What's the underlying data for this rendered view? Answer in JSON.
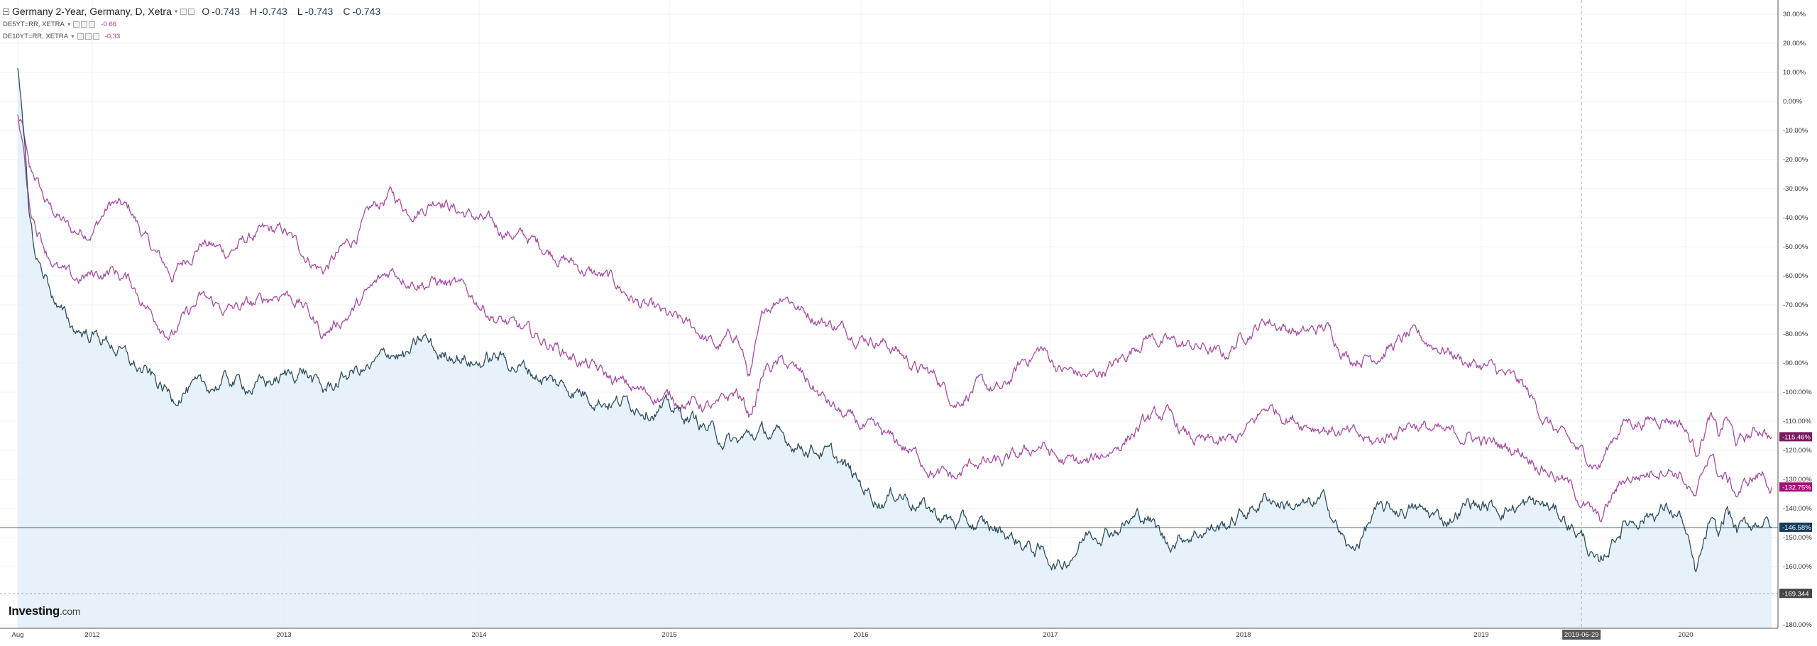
{
  "legend": {
    "main_title": "Germany 2-Year, Germany, D, Xetra",
    "ohlc": [
      {
        "label": "O",
        "value": "-0.743"
      },
      {
        "label": "H",
        "value": "-0.743"
      },
      {
        "label": "L",
        "value": "-0.743"
      },
      {
        "label": "C",
        "value": "-0.743"
      }
    ],
    "overlays": [
      {
        "label": "DE5YT=RR, XETRA",
        "value": "-0.66"
      },
      {
        "label": "DE10YT=RR, XETRA",
        "value": "-0.33"
      }
    ]
  },
  "logo": {
    "brand": "Investing",
    "suffix": ".com"
  },
  "colors": {
    "main_line": "#2f4f5f",
    "main_fill": "#e3eef9",
    "purple": "#a64ca0",
    "badge_purple": "#7a1b5e",
    "badge_magenta": "#a3107a",
    "badge_navy": "#143a5c",
    "badge_gray": "#444444"
  },
  "chart_data": {
    "type": "line",
    "title": "",
    "x_labels": [
      "Aug",
      "2012",
      "2013",
      "2014",
      "2015",
      "2016",
      "2017",
      "2018",
      "2019",
      "2020"
    ],
    "y_ticks": [
      "30.00%",
      "20.00%",
      "10.00%",
      "0.00%",
      "-10.00%",
      "-20.00%",
      "-30.00%",
      "-40.00%",
      "-50.00%",
      "-60.00%",
      "-70.00%",
      "-80.00%",
      "-90.00%",
      "-100.00%",
      "-110.00%",
      "-120.00%",
      "-130.00%",
      "-140.00%",
      "-150.00%",
      "-160.00%",
      "-170.00%",
      "-180.00%"
    ],
    "ylim": [
      -181,
      33
    ],
    "grid": true,
    "crosshair_date": "2019-06-29",
    "reference_value": -169.344,
    "reference_label": "-169.344",
    "series": [
      {
        "name": "DE10YT=RR, XETRA",
        "last_label": "-115.46%",
        "x": [
          2011.55,
          2011.58,
          2011.62,
          2011.66,
          2011.72,
          2011.8,
          2011.88,
          2012.0,
          2012.1,
          2012.2,
          2012.3,
          2012.42,
          2012.48,
          2012.57,
          2012.7,
          2012.85,
          2013.0,
          2013.1,
          2013.2,
          2013.35,
          2013.45,
          2013.55,
          2013.63,
          2013.72,
          2013.8,
          2013.88,
          2013.98,
          2014.1,
          2014.25,
          2014.4,
          2014.55,
          2014.7,
          2014.85,
          2015.0,
          2015.15,
          2015.25,
          2015.35,
          2015.42,
          2015.5,
          2015.6,
          2015.7,
          2015.8,
          2015.9,
          2016.0,
          2016.1,
          2016.2,
          2016.3,
          2016.4,
          2016.5,
          2016.6,
          2016.75,
          2016.85,
          2016.95,
          2017.05,
          2017.2,
          2017.35,
          2017.5,
          2017.6,
          2017.7,
          2017.8,
          2017.9,
          2018.0,
          2018.1,
          2018.25,
          2018.35,
          2018.45,
          2018.55,
          2018.7,
          2018.85,
          2018.95,
          2019.05,
          2019.2,
          2019.3,
          2019.4,
          2019.5,
          2019.58,
          2019.65,
          2019.7,
          2019.8,
          2019.9,
          2019.98,
          2020.05,
          2020.12,
          2020.16,
          2020.2,
          2020.25,
          2020.32,
          2020.38,
          2020.42
        ],
        "y": [
          -5,
          -10,
          -25,
          -27,
          -35,
          -40,
          -45,
          -44,
          -35,
          -38,
          -50,
          -60,
          -55,
          -48,
          -52,
          -46,
          -45,
          -52,
          -58,
          -48,
          -38,
          -32,
          -37,
          -36,
          -32,
          -37,
          -40,
          -44,
          -47,
          -52,
          -58,
          -62,
          -70,
          -75,
          -79,
          -85,
          -80,
          -95,
          -72,
          -65,
          -72,
          -75,
          -78,
          -80,
          -82,
          -86,
          -92,
          -95,
          -103,
          -98,
          -100,
          -90,
          -85,
          -92,
          -95,
          -90,
          -80,
          -83,
          -84,
          -85,
          -88,
          -80,
          -75,
          -80,
          -78,
          -88,
          -87,
          -81,
          -85,
          -90,
          -92,
          -98,
          -108,
          -116,
          -122,
          -125,
          -115,
          -110,
          -110,
          -108,
          -110,
          -120,
          -108,
          -116,
          -109,
          -118,
          -115,
          -112,
          -115.46
        ]
      },
      {
        "name": "DE5YT=RR, XETRA",
        "last_label": "-132.75%",
        "x": [
          2011.55,
          2011.58,
          2011.62,
          2011.66,
          2011.72,
          2011.8,
          2011.88,
          2012.0,
          2012.1,
          2012.2,
          2012.3,
          2012.42,
          2012.48,
          2012.57,
          2012.7,
          2012.85,
          2013.0,
          2013.1,
          2013.2,
          2013.35,
          2013.45,
          2013.55,
          2013.63,
          2013.72,
          2013.8,
          2013.88,
          2013.98,
          2014.1,
          2014.25,
          2014.4,
          2014.55,
          2014.7,
          2014.85,
          2015.0,
          2015.15,
          2015.25,
          2015.35,
          2015.42,
          2015.5,
          2015.6,
          2015.7,
          2015.8,
          2015.9,
          2016.0,
          2016.1,
          2016.2,
          2016.3,
          2016.4,
          2016.5,
          2016.6,
          2016.75,
          2016.85,
          2016.95,
          2017.05,
          2017.2,
          2017.35,
          2017.5,
          2017.6,
          2017.7,
          2017.8,
          2017.9,
          2018.0,
          2018.1,
          2018.25,
          2018.35,
          2018.45,
          2018.55,
          2018.7,
          2018.85,
          2018.95,
          2019.05,
          2019.2,
          2019.3,
          2019.4,
          2019.5,
          2019.58,
          2019.65,
          2019.7,
          2019.8,
          2019.9,
          2019.98,
          2020.05,
          2020.12,
          2020.16,
          2020.2,
          2020.25,
          2020.32,
          2020.38,
          2020.42
        ],
        "y": [
          -8,
          -15,
          -35,
          -42,
          -50,
          -58,
          -62,
          -60,
          -58,
          -62,
          -72,
          -80,
          -75,
          -68,
          -72,
          -70,
          -65,
          -70,
          -80,
          -72,
          -65,
          -58,
          -60,
          -62,
          -62,
          -64,
          -68,
          -75,
          -80,
          -84,
          -90,
          -96,
          -100,
          -102,
          -104,
          -106,
          -100,
          -108,
          -92,
          -90,
          -95,
          -102,
          -108,
          -112,
          -115,
          -118,
          -122,
          -128,
          -130,
          -124,
          -125,
          -122,
          -118,
          -124,
          -125,
          -118,
          -110,
          -108,
          -115,
          -118,
          -118,
          -115,
          -105,
          -110,
          -112,
          -115,
          -118,
          -110,
          -115,
          -115,
          -118,
          -120,
          -125,
          -130,
          -138,
          -145,
          -135,
          -130,
          -128,
          -125,
          -128,
          -138,
          -120,
          -128,
          -130,
          -135,
          -130,
          -128,
          -132.75
        ]
      },
      {
        "name": "Germany 2-Year, Germany, D, Xetra",
        "last_label": "-146.58%",
        "x": [
          2011.55,
          2011.58,
          2011.62,
          2011.66,
          2011.72,
          2011.8,
          2011.88,
          2012.0,
          2012.1,
          2012.2,
          2012.3,
          2012.42,
          2012.48,
          2012.57,
          2012.7,
          2012.85,
          2013.0,
          2013.1,
          2013.2,
          2013.35,
          2013.45,
          2013.55,
          2013.63,
          2013.72,
          2013.8,
          2013.88,
          2013.98,
          2014.1,
          2014.25,
          2014.4,
          2014.55,
          2014.7,
          2014.85,
          2015.0,
          2015.15,
          2015.25,
          2015.35,
          2015.42,
          2015.5,
          2015.6,
          2015.7,
          2015.8,
          2015.9,
          2016.0,
          2016.1,
          2016.2,
          2016.3,
          2016.4,
          2016.5,
          2016.6,
          2016.75,
          2016.85,
          2016.95,
          2017.05,
          2017.2,
          2017.35,
          2017.5,
          2017.6,
          2017.7,
          2017.8,
          2017.9,
          2018.0,
          2018.1,
          2018.25,
          2018.35,
          2018.45,
          2018.55,
          2018.7,
          2018.85,
          2018.95,
          2019.05,
          2019.2,
          2019.3,
          2019.4,
          2019.5,
          2019.58,
          2019.65,
          2019.7,
          2019.8,
          2019.9,
          2019.98,
          2020.05,
          2020.12,
          2020.16,
          2020.2,
          2020.25,
          2020.32,
          2020.38,
          2020.42
        ],
        "y": [
          10,
          -10,
          -40,
          -55,
          -60,
          -72,
          -78,
          -80,
          -83,
          -90,
          -95,
          -102,
          -98,
          -100,
          -96,
          -98,
          -95,
          -92,
          -100,
          -93,
          -92,
          -86,
          -88,
          -82,
          -88,
          -86,
          -90,
          -88,
          -92,
          -97,
          -100,
          -103,
          -104,
          -106,
          -110,
          -115,
          -118,
          -115,
          -114,
          -117,
          -118,
          -120,
          -125,
          -132,
          -137,
          -134,
          -138,
          -142,
          -145,
          -146,
          -148,
          -152,
          -155,
          -160,
          -148,
          -146,
          -142,
          -152,
          -149,
          -147,
          -146,
          -142,
          -136,
          -140,
          -138,
          -156,
          -142,
          -140,
          -144,
          -138,
          -140,
          -139,
          -139,
          -143,
          -150,
          -162,
          -150,
          -145,
          -142,
          -140,
          -143,
          -164,
          -145,
          -152,
          -140,
          -148,
          -146,
          -143,
          -146.58
        ]
      }
    ]
  }
}
